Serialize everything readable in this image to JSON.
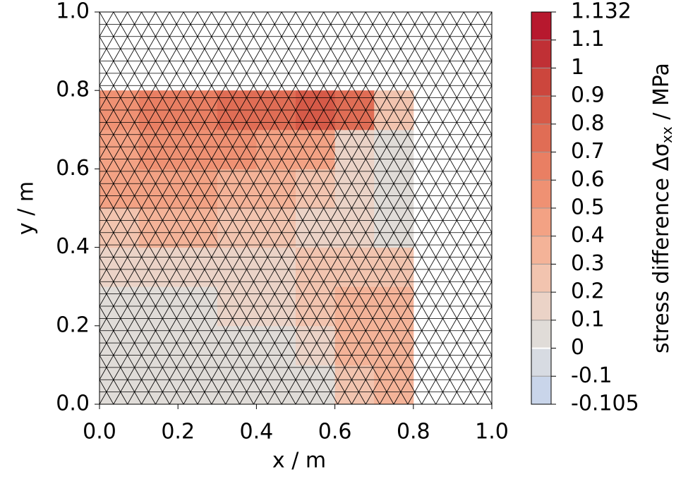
{
  "chart_data": {
    "type": "contour",
    "xlabel": "x / m",
    "ylabel": "y / m",
    "colorbar_label": {
      "pre": "stress difference Δσ",
      "sub": "xx",
      "post": " / MPa"
    },
    "xlim": [
      0,
      1
    ],
    "ylim": [
      0,
      1
    ],
    "xticks": [
      {
        "value": 0,
        "label": "0.0"
      },
      0.2,
      0.4,
      0.6,
      0.8,
      {
        "value": 1,
        "label": "1.0"
      }
    ],
    "yticks": [
      {
        "value": 0,
        "label": "0.0"
      },
      0.2,
      0.4,
      0.6,
      0.8,
      {
        "value": 1,
        "label": "1.0"
      }
    ],
    "levels": [
      -0.105,
      -0.1,
      0,
      0.1,
      0.2,
      0.3,
      0.4,
      0.5,
      0.6,
      0.7,
      0.8,
      0.9,
      1,
      1.1,
      1.132
    ],
    "colors": [
      "#c9d5ea",
      "#d7dbe2",
      "#e0dcd8",
      "#ebd3c7",
      "#f2c4af",
      "#f4b398",
      "#f3a284",
      "#ef9173",
      "#e97f63",
      "#e06d55",
      "#d65a48",
      "#cc463d",
      "#c03035",
      "#b7182e"
    ],
    "x": [
      0.05,
      0.15,
      0.25,
      0.35,
      0.45,
      0.55,
      0.65,
      0.75
    ],
    "y": [
      0.05,
      0.15,
      0.25,
      0.35,
      0.45,
      0.55,
      0.65,
      0.75
    ],
    "z": [
      [
        0.05,
        0.05,
        0.05,
        0.05,
        0.05,
        0.1,
        0.3,
        0.4
      ],
      [
        0.05,
        0.05,
        0.05,
        0.05,
        0.1,
        0.2,
        0.35,
        0.4
      ],
      [
        0.05,
        0.1,
        0.1,
        0.15,
        0.2,
        0.3,
        0.35,
        0.35
      ],
      [
        0.15,
        0.2,
        0.2,
        0.2,
        0.2,
        0.25,
        0.3,
        0.3
      ],
      [
        0.3,
        0.35,
        0.35,
        0.3,
        0.25,
        0.2,
        0.15,
        0.1
      ],
      [
        0.45,
        0.45,
        0.45,
        0.4,
        0.35,
        0.3,
        0.15,
        0.05
      ],
      [
        0.5,
        0.55,
        0.55,
        0.55,
        0.5,
        0.45,
        0.2,
        0.05
      ],
      [
        0.6,
        0.65,
        0.7,
        0.75,
        0.8,
        0.85,
        0.8,
        0.3
      ]
    ]
  }
}
